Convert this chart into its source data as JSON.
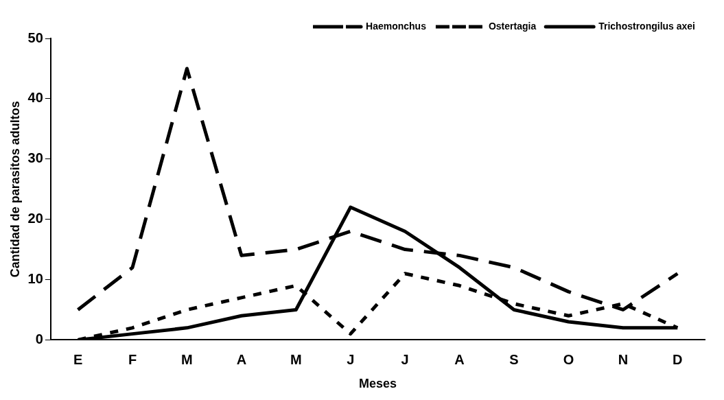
{
  "chart_data": {
    "type": "line",
    "xlabel": "Meses",
    "ylabel": "Cantidad de parasitos adultos",
    "categories": [
      "E",
      "F",
      "M",
      "A",
      "M",
      "J",
      "J",
      "A",
      "S",
      "O",
      "N",
      "D"
    ],
    "series": [
      {
        "name": "Haemonchus",
        "color": "#000000",
        "line_style": "dashed",
        "values": [
          5,
          12,
          45,
          14,
          15,
          18,
          15,
          14,
          12,
          8,
          5,
          11
        ]
      },
      {
        "name": "Ostertagia",
        "color": "#000000",
        "line_style": "dotted",
        "values": [
          0,
          2,
          5,
          7,
          9,
          1,
          11,
          9,
          6,
          4,
          6,
          2
        ]
      },
      {
        "name": "Trichostrongilus axei",
        "color": "#000000",
        "line_style": "solid",
        "values": [
          0,
          1,
          2,
          4,
          5,
          22,
          18,
          12,
          5,
          3,
          2,
          2
        ]
      }
    ],
    "ylim": [
      0,
      50
    ],
    "yticks": [
      0,
      10,
      20,
      30,
      40,
      50
    ],
    "grid": false,
    "legend": "top right",
    "marker": "none"
  }
}
